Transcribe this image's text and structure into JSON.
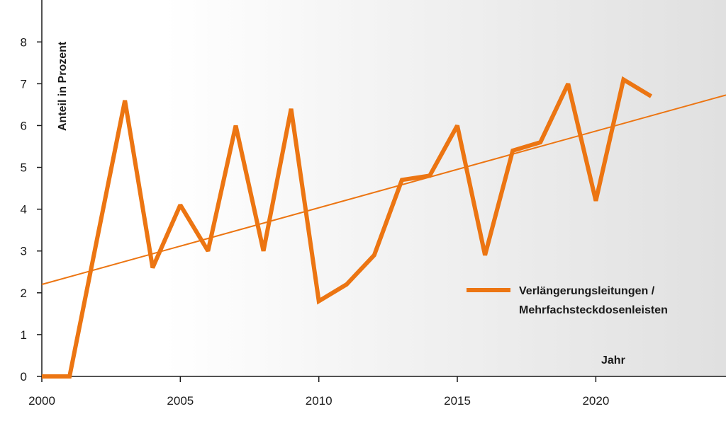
{
  "chart_data": {
    "type": "line",
    "ylabel": "Anteil in Prozent",
    "xlabel": "Jahr",
    "xlim": [
      2000,
      2024.7
    ],
    "ylim": [
      0,
      8.8
    ],
    "x_ticks": [
      2000,
      2005,
      2010,
      2015,
      2020
    ],
    "y_ticks": [
      0,
      1,
      2,
      3,
      4,
      5,
      6,
      7,
      8
    ],
    "grid": false,
    "legend_position": "right",
    "series": [
      {
        "name": "Verlängerungsleitungen / Mehrfachsteckdosenleisten",
        "color": "#ec7512",
        "x": [
          2000,
          2001,
          2002,
          2003,
          2004,
          2005,
          2006,
          2007,
          2008,
          2009,
          2010,
          2011,
          2012,
          2013,
          2014,
          2015,
          2016,
          2017,
          2018,
          2019,
          2020,
          2021,
          2022
        ],
        "y": [
          0,
          0,
          3.3,
          6.6,
          2.6,
          4.1,
          3.0,
          6.0,
          3.0,
          6.4,
          1.8,
          2.2,
          2.9,
          4.7,
          4.8,
          6.0,
          2.9,
          5.4,
          5.6,
          7.0,
          4.2,
          7.1,
          6.7
        ]
      }
    ],
    "trendline": {
      "color": "#ec7512",
      "x": [
        2000,
        2024.7
      ],
      "y": [
        2.2,
        6.73
      ]
    },
    "legend": {
      "line1": "Verlängerungsleitungen /",
      "line2": "Mehrfachsteckdosenleisten"
    }
  }
}
